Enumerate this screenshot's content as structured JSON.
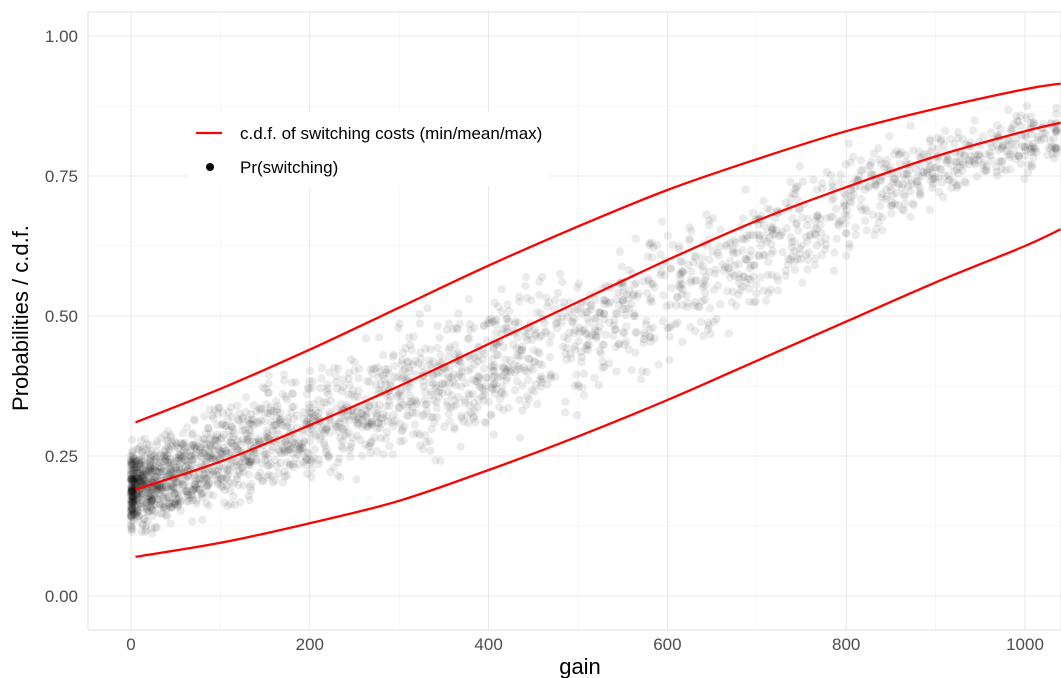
{
  "chart_data": {
    "type": "scatter",
    "xlabel": "gain",
    "ylabel": "Probabilities / c.d.f.",
    "xlim": [
      -50,
      1040
    ],
    "ylim": [
      -0.05,
      1.05
    ],
    "x_ticks": [
      0,
      200,
      400,
      600,
      800,
      1000
    ],
    "x_tick_labels": [
      "0",
      "200",
      "400",
      "600",
      "800",
      "1000"
    ],
    "y_ticks": [
      0,
      0.25,
      0.5,
      0.75,
      1.0
    ],
    "y_tick_labels": [
      "0.00",
      "0.25",
      "0.50",
      "0.75",
      "1.00"
    ],
    "grid": true,
    "legend_placement": "top-left",
    "legend": [
      {
        "label": "c.d.f. of switching costs (min/mean/max)",
        "kind": "line",
        "color": "#ff0000"
      },
      {
        "label": "Pr(switching)",
        "kind": "point",
        "color": "#000000"
      }
    ],
    "lines": [
      {
        "role": "max",
        "color": "#ff0000",
        "x": [
          5,
          100,
          200,
          300,
          400,
          500,
          600,
          700,
          800,
          900,
          1000,
          1040
        ],
        "y": [
          0.31,
          0.37,
          0.44,
          0.515,
          0.59,
          0.66,
          0.725,
          0.78,
          0.83,
          0.87,
          0.905,
          0.915
        ]
      },
      {
        "role": "mean",
        "color": "#ff0000",
        "x": [
          5,
          100,
          200,
          300,
          400,
          500,
          600,
          700,
          800,
          900,
          1000,
          1040
        ],
        "y": [
          0.19,
          0.24,
          0.305,
          0.375,
          0.45,
          0.525,
          0.6,
          0.67,
          0.73,
          0.785,
          0.83,
          0.845
        ]
      },
      {
        "role": "min",
        "color": "#ff0000",
        "x": [
          5,
          100,
          200,
          300,
          400,
          500,
          600,
          700,
          800,
          900,
          1000,
          1040
        ],
        "y": [
          0.07,
          0.095,
          0.13,
          0.17,
          0.225,
          0.285,
          0.35,
          0.42,
          0.49,
          0.56,
          0.625,
          0.655
        ]
      }
    ],
    "points": {
      "series": "Pr(switching)",
      "color": "#000000",
      "opacity": 0.08,
      "sample_x": [
        0,
        10,
        25,
        50,
        75,
        100,
        150,
        200,
        250,
        300,
        350,
        400,
        450,
        500,
        550,
        600,
        650,
        700,
        750,
        800,
        850,
        900,
        950,
        1000,
        1030
      ],
      "sample_y_low": [
        0.08,
        0.085,
        0.09,
        0.1,
        0.11,
        0.12,
        0.14,
        0.16,
        0.18,
        0.2,
        0.22,
        0.24,
        0.27,
        0.3,
        0.33,
        0.37,
        0.42,
        0.47,
        0.52,
        0.58,
        0.63,
        0.67,
        0.7,
        0.72,
        0.75
      ],
      "sample_y_high": [
        0.3,
        0.305,
        0.31,
        0.33,
        0.35,
        0.37,
        0.41,
        0.44,
        0.47,
        0.51,
        0.55,
        0.58,
        0.61,
        0.63,
        0.67,
        0.71,
        0.74,
        0.77,
        0.8,
        0.83,
        0.85,
        0.87,
        0.88,
        0.89,
        0.9
      ]
    }
  }
}
